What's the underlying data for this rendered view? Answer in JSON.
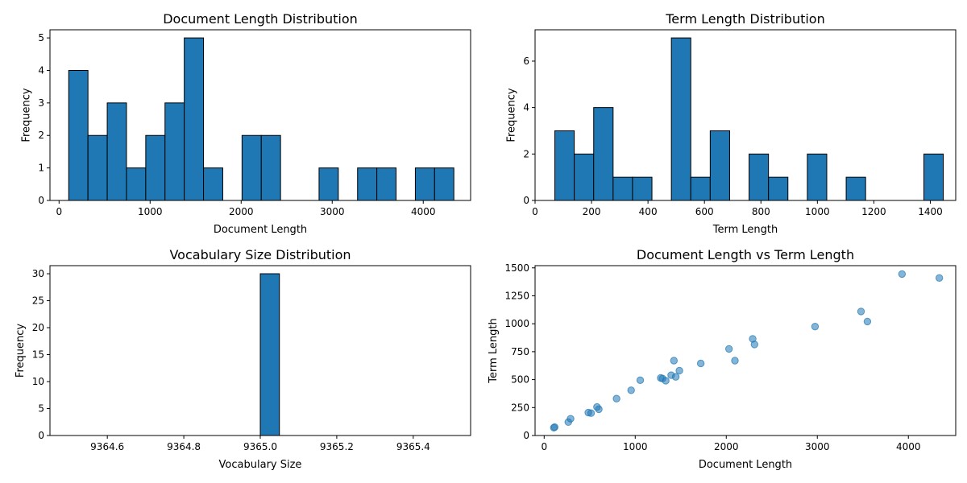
{
  "chart_data": [
    {
      "type": "bar",
      "title": "Document Length Distribution",
      "xlabel": "Document Length",
      "ylabel": "Frequency",
      "xlim": [
        -100,
        4520
      ],
      "ylim": [
        0,
        5.25
      ],
      "xticks": [
        0,
        1000,
        2000,
        3000,
        4000
      ],
      "yticks": [
        0,
        1,
        2,
        3,
        4,
        5
      ],
      "bin_start": 106,
      "bin_width": 211.5,
      "values": [
        4,
        2,
        3,
        1,
        2,
        3,
        5,
        1,
        0,
        2,
        2,
        0,
        0,
        1,
        0,
        1,
        1,
        0,
        1,
        1
      ],
      "color": "#1f77b4"
    },
    {
      "type": "bar",
      "title": "Term Length Distribution",
      "xlabel": "Term Length",
      "ylabel": "Frequency",
      "xlim": [
        0,
        1490
      ],
      "ylim": [
        0,
        7.35
      ],
      "xticks": [
        0,
        200,
        400,
        600,
        800,
        1000,
        1200,
        1400
      ],
      "yticks": [
        0,
        2,
        4,
        6
      ],
      "bin_start": 70,
      "bin_width": 68.8,
      "values": [
        3,
        2,
        4,
        1,
        1,
        0,
        7,
        1,
        3,
        0,
        2,
        1,
        0,
        2,
        0,
        1,
        0,
        0,
        0,
        2
      ],
      "color": "#1f77b4"
    },
    {
      "type": "bar",
      "title": "Vocabulary Size Distribution",
      "xlabel": "Vocabulary Size",
      "ylabel": "Frequency",
      "xlim": [
        9364.45,
        9365.55
      ],
      "ylim": [
        0,
        31.5
      ],
      "xticks": [
        9364.6,
        9364.8,
        9365.0,
        9365.2,
        9365.4
      ],
      "xtick_labels": [
        "9364.6",
        "9364.8",
        "9365.0",
        "9365.2",
        "9365.4"
      ],
      "yticks": [
        0,
        5,
        10,
        15,
        20,
        25,
        30
      ],
      "bin_start": 9364.5,
      "bin_width": 0.05,
      "values": [
        0,
        0,
        0,
        0,
        0,
        0,
        0,
        0,
        0,
        0,
        30,
        0,
        0,
        0,
        0,
        0,
        0,
        0,
        0,
        0
      ],
      "color": "#1f77b4"
    },
    {
      "type": "scatter",
      "title": "Document Length vs Term Length",
      "xlabel": "Document Length",
      "ylabel": "Term Length",
      "xlim": [
        -100,
        4520
      ],
      "ylim": [
        0,
        1520
      ],
      "xticks": [
        0,
        1000,
        2000,
        3000,
        4000
      ],
      "yticks": [
        0,
        250,
        500,
        750,
        1000,
        1250,
        1500
      ],
      "color": "#1f77b4",
      "x": [
        106,
        115,
        265,
        290,
        485,
        515,
        580,
        600,
        795,
        955,
        1055,
        1280,
        1300,
        1335,
        1395,
        1425,
        1445,
        1485,
        1720,
        2030,
        2095,
        2290,
        2310,
        2975,
        3480,
        3550,
        3930,
        4340
      ],
      "y": [
        70,
        75,
        120,
        150,
        205,
        200,
        255,
        235,
        330,
        405,
        495,
        515,
        510,
        490,
        540,
        670,
        525,
        580,
        645,
        775,
        670,
        865,
        815,
        975,
        1110,
        1020,
        1445,
        1410
      ]
    }
  ]
}
